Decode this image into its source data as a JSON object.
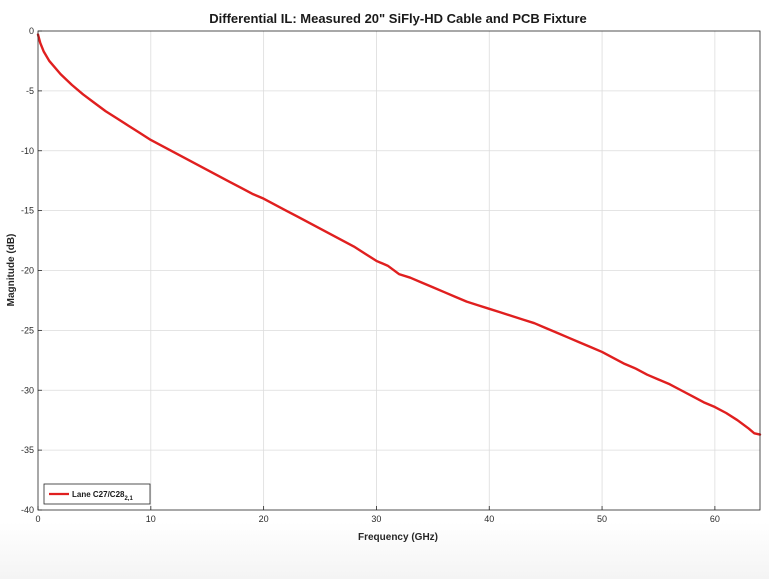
{
  "chart_data": {
    "type": "line",
    "title": "Differential IL: Measured 20\" SiFly-HD Cable and PCB Fixture",
    "xlabel": "Frequency (GHz)",
    "ylabel": "Magnitude (dB)",
    "xlim": [
      0,
      64
    ],
    "ylim": [
      -40,
      0
    ],
    "xticks": [
      0,
      10,
      20,
      30,
      40,
      50,
      60
    ],
    "xtick_labels": [
      "0",
      "10",
      "20",
      "30",
      "40",
      "50",
      "60"
    ],
    "yticks": [
      0,
      -5,
      -10,
      -15,
      -20,
      -25,
      -30,
      -35,
      -40
    ],
    "ytick_labels": [
      "0",
      "-5",
      "-10",
      "-15",
      "-20",
      "-25",
      "-30",
      "-35",
      "-40"
    ],
    "grid": true,
    "legend_position": "bottom-left",
    "series": [
      {
        "name": "Lane C27/C28",
        "name_subscript": "2,1",
        "color": "#e01f1f",
        "x": [
          0,
          0.2,
          0.5,
          1,
          2,
          3,
          4,
          5,
          6,
          7,
          8,
          9,
          10,
          11,
          12,
          13,
          14,
          15,
          16,
          17,
          18,
          19,
          20,
          21,
          22,
          23,
          24,
          25,
          26,
          27,
          28,
          29,
          30,
          31,
          32,
          33,
          34,
          35,
          36,
          37,
          38,
          39,
          40,
          41,
          42,
          43,
          44,
          45,
          46,
          47,
          48,
          49,
          50,
          51,
          52,
          53,
          54,
          55,
          56,
          57,
          58,
          59,
          60,
          61,
          62,
          63,
          63.5,
          64
        ],
        "y": [
          -0.3,
          -1.0,
          -1.7,
          -2.5,
          -3.6,
          -4.5,
          -5.3,
          -6.0,
          -6.7,
          -7.3,
          -7.9,
          -8.5,
          -9.1,
          -9.6,
          -10.1,
          -10.6,
          -11.1,
          -11.6,
          -12.1,
          -12.6,
          -13.1,
          -13.6,
          -14.0,
          -14.5,
          -15.0,
          -15.5,
          -16.0,
          -16.5,
          -17.0,
          -17.5,
          -18.0,
          -18.6,
          -19.2,
          -19.6,
          -20.3,
          -20.6,
          -21.0,
          -21.4,
          -21.8,
          -22.2,
          -22.6,
          -22.9,
          -23.2,
          -23.5,
          -23.8,
          -24.1,
          -24.4,
          -24.8,
          -25.2,
          -25.6,
          -26.0,
          -26.4,
          -26.8,
          -27.3,
          -27.8,
          -28.2,
          -28.7,
          -29.1,
          -29.5,
          -30.0,
          -30.5,
          -31.0,
          -31.4,
          -31.9,
          -32.5,
          -33.2,
          -33.6,
          -33.7
        ]
      }
    ]
  }
}
